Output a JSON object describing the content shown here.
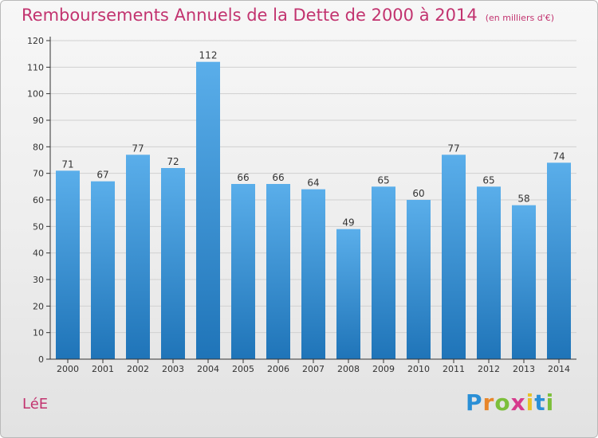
{
  "title": "Remboursements Annuels de la Dette de 2000 à 2014",
  "subtitle": "(en milliers d'€)",
  "commune": "LéE",
  "logo": {
    "letters": [
      "P",
      "r",
      "o",
      "x",
      "i",
      "t",
      "i"
    ],
    "colors": [
      "#2a8fd6",
      "#e8862a",
      "#7cbf3a",
      "#d63a8c",
      "#e8c22a",
      "#2a8fd6",
      "#7cbf3a"
    ]
  },
  "colors": {
    "title": "#c2336f",
    "bar_top": "#5aaeea",
    "bar_bottom": "#1f74b8",
    "axis": "#333333",
    "grid": "#d0d0d0"
  },
  "chart_data": {
    "type": "bar",
    "categories": [
      "2000",
      "2001",
      "2002",
      "2003",
      "2004",
      "2005",
      "2006",
      "2007",
      "2008",
      "2009",
      "2010",
      "2011",
      "2012",
      "2013",
      "2014"
    ],
    "values": [
      71,
      67,
      77,
      72,
      112,
      66,
      66,
      64,
      49,
      65,
      60,
      77,
      65,
      58,
      74
    ],
    "ylim": [
      0,
      120
    ],
    "yticks": [
      0,
      10,
      20,
      30,
      40,
      50,
      60,
      70,
      80,
      90,
      100,
      110,
      120
    ],
    "grid": true,
    "data_labels": true
  }
}
